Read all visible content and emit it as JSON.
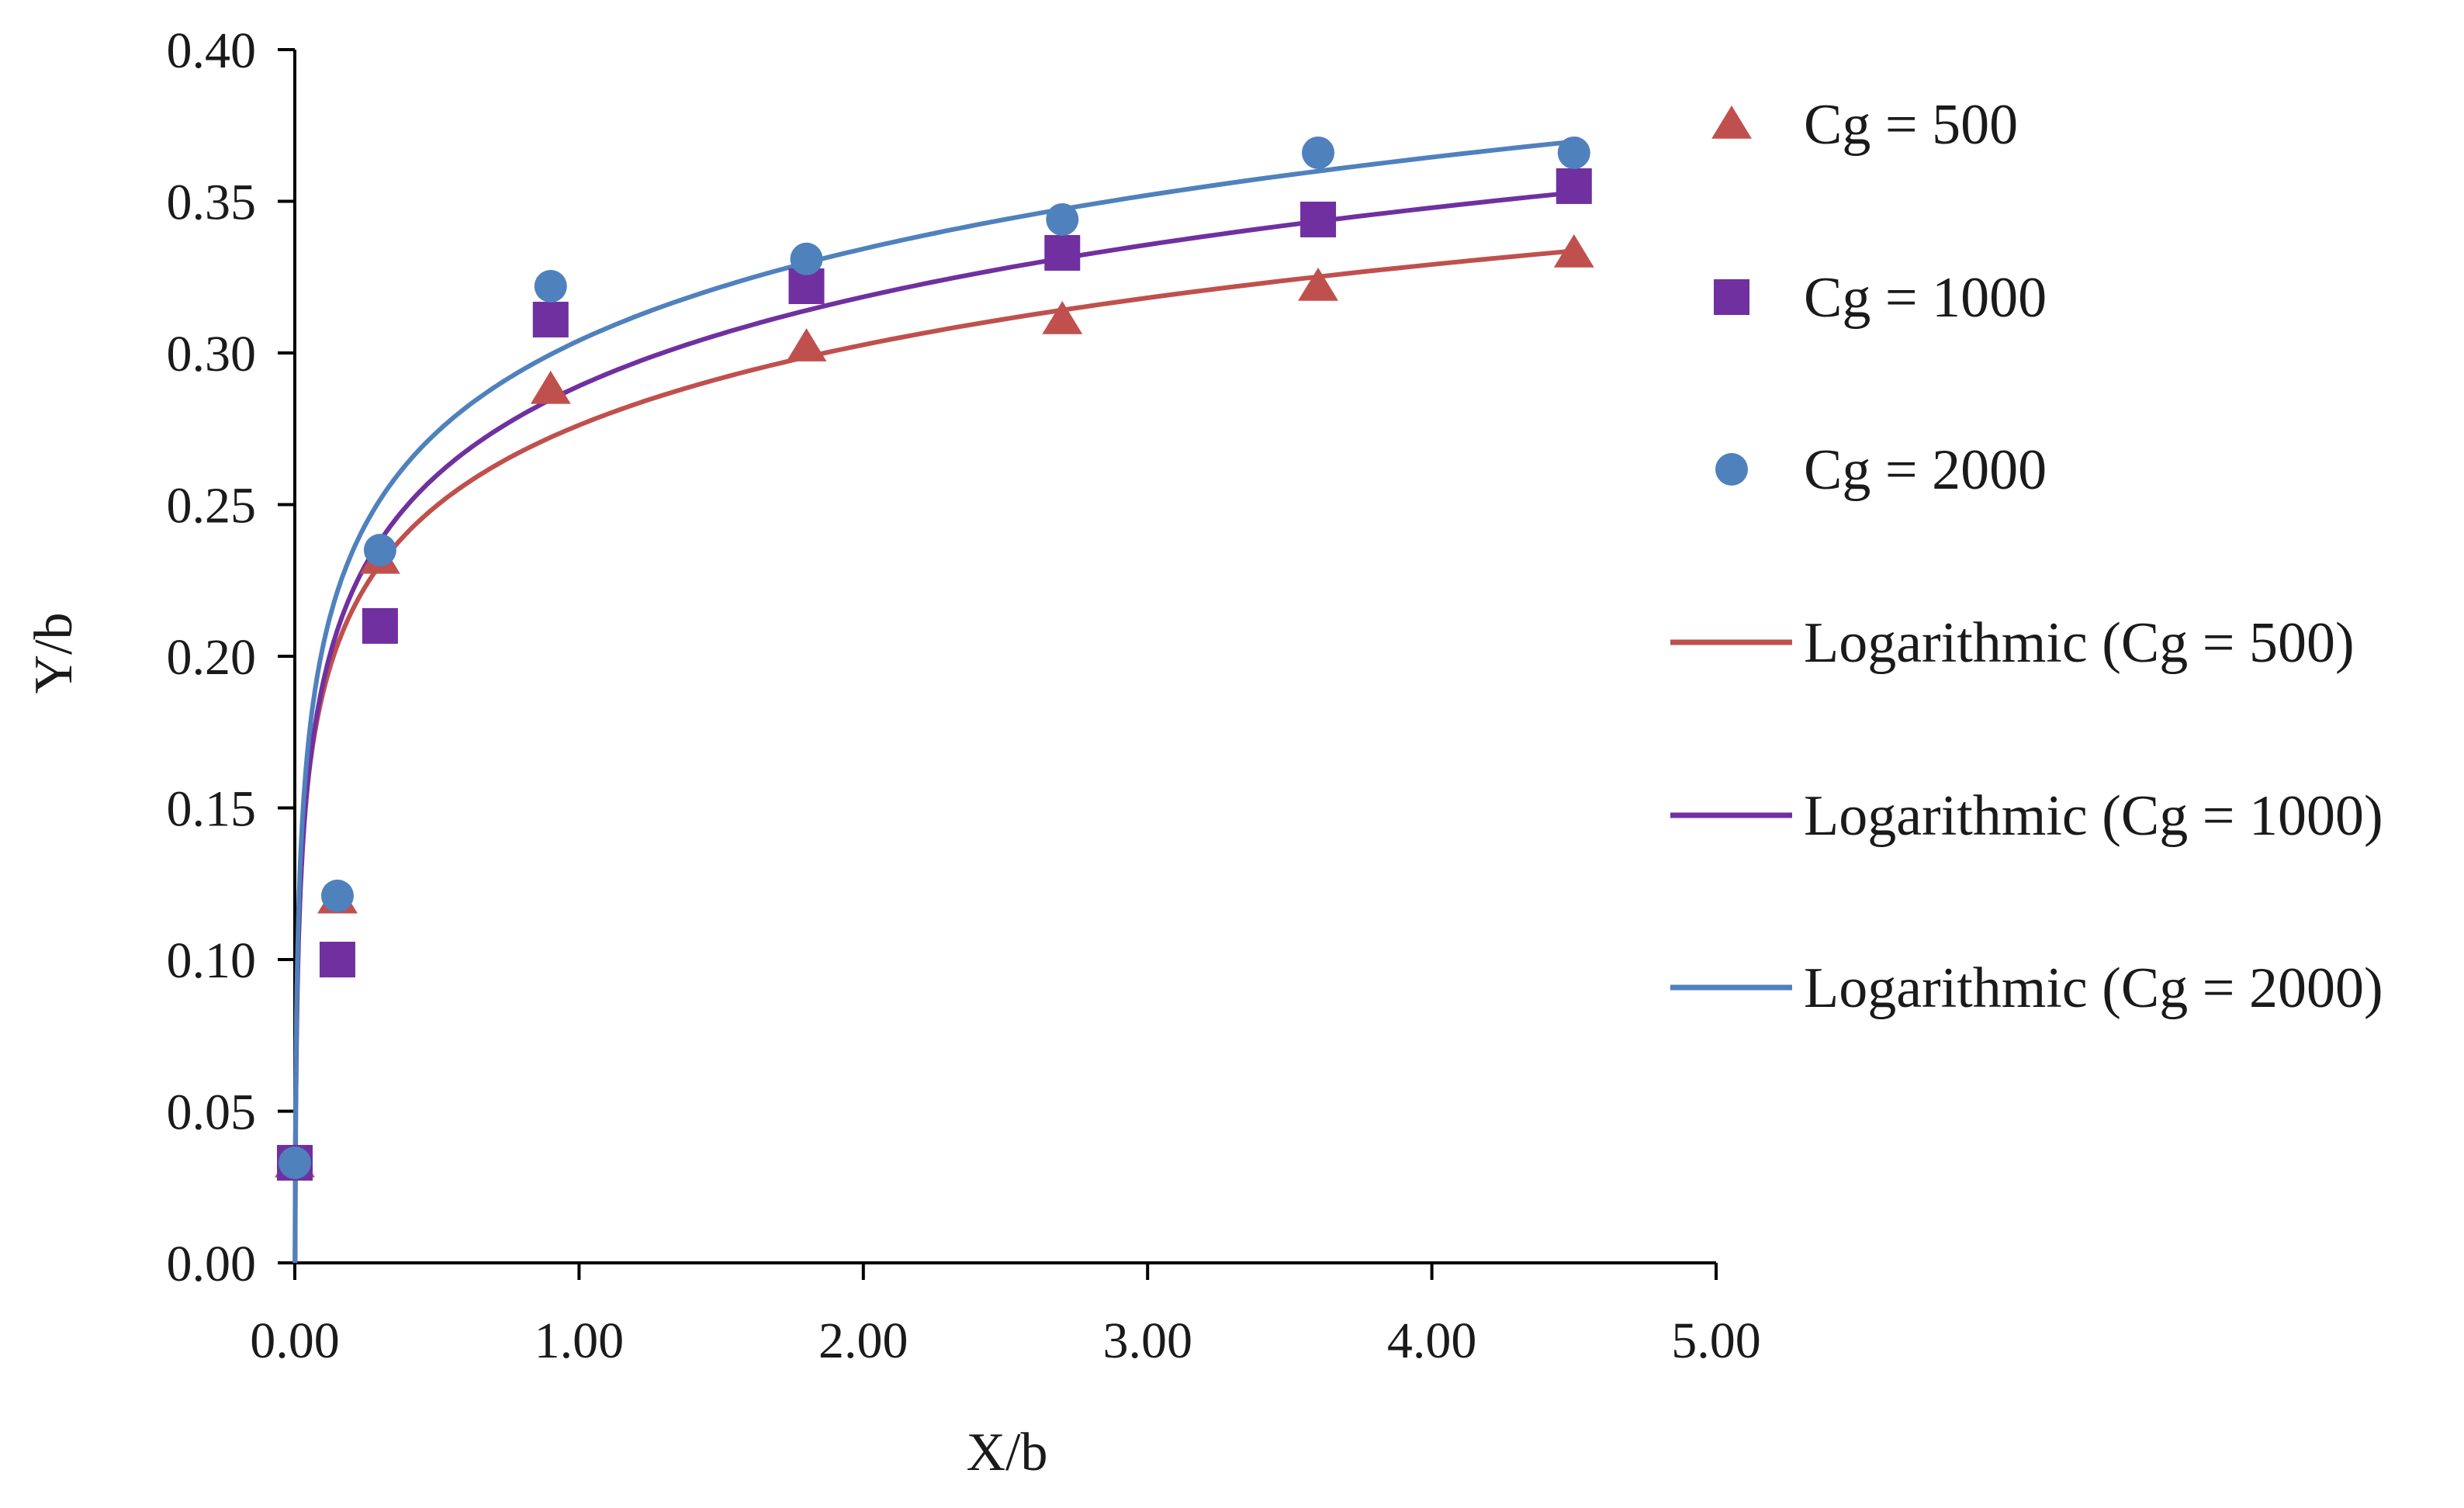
{
  "chart_data": {
    "type": "scatter",
    "title": "",
    "xlabel": "X/b",
    "ylabel": "Y/b",
    "xlim": [
      0,
      5
    ],
    "ylim": [
      0,
      0.4
    ],
    "x_ticks": [
      0,
      1,
      2,
      3,
      4,
      5
    ],
    "x_tick_labels": [
      "0.00",
      "1.00",
      "2.00",
      "3.00",
      "4.00",
      "5.00"
    ],
    "y_ticks": [
      0,
      0.05,
      0.1,
      0.15,
      0.2,
      0.25,
      0.3,
      0.35,
      0.4
    ],
    "y_tick_labels": [
      "0.00",
      "0.05",
      "0.10",
      "0.15",
      "0.20",
      "0.25",
      "0.30",
      "0.35",
      "0.40"
    ],
    "grid": false,
    "legend_position": "right",
    "series": [
      {
        "name": "Cg = 500",
        "marker": "triangle",
        "color": "#C0504D",
        "x": [
          0,
          0.15,
          0.3,
          0.9,
          1.8,
          2.7,
          3.6,
          4.5
        ],
        "y": [
          0.033,
          0.12,
          0.232,
          0.288,
          0.302,
          0.311,
          0.322,
          0.333
        ]
      },
      {
        "name": "Cg = 1000",
        "marker": "square",
        "color": "#7030A0",
        "x": [
          0,
          0.15,
          0.3,
          0.9,
          1.8,
          2.7,
          3.6,
          4.5
        ],
        "y": [
          0.033,
          0.1,
          0.21,
          0.311,
          0.322,
          0.333,
          0.344,
          0.355
        ]
      },
      {
        "name": "Cg = 2000",
        "marker": "circle",
        "color": "#4F81BD",
        "x": [
          0,
          0.15,
          0.3,
          0.9,
          1.8,
          2.7,
          3.6,
          4.5
        ],
        "y": [
          0.033,
          0.121,
          0.235,
          0.322,
          0.331,
          0.344,
          0.366,
          0.366
        ]
      }
    ],
    "trendlines": [
      {
        "name": "Logarithmic (Cg = 500)",
        "type": "logarithmic",
        "color": "#C0504D",
        "a": 0.0382,
        "b": 0.2762
      },
      {
        "name": "Logarithmic (Cg = 1000)",
        "type": "logarithmic",
        "color": "#7030A0",
        "a": 0.0424,
        "b": 0.2891
      },
      {
        "name": "Logarithmic (Cg = 2000)",
        "type": "logarithmic",
        "color": "#4F81BD",
        "a": 0.0436,
        "b": 0.3041
      }
    ],
    "legend": [
      "Cg = 500",
      "Cg = 1000",
      "Cg = 2000",
      "Logarithmic (Cg = 500)",
      "Logarithmic (Cg = 1000)",
      "Logarithmic (Cg = 2000)"
    ]
  }
}
